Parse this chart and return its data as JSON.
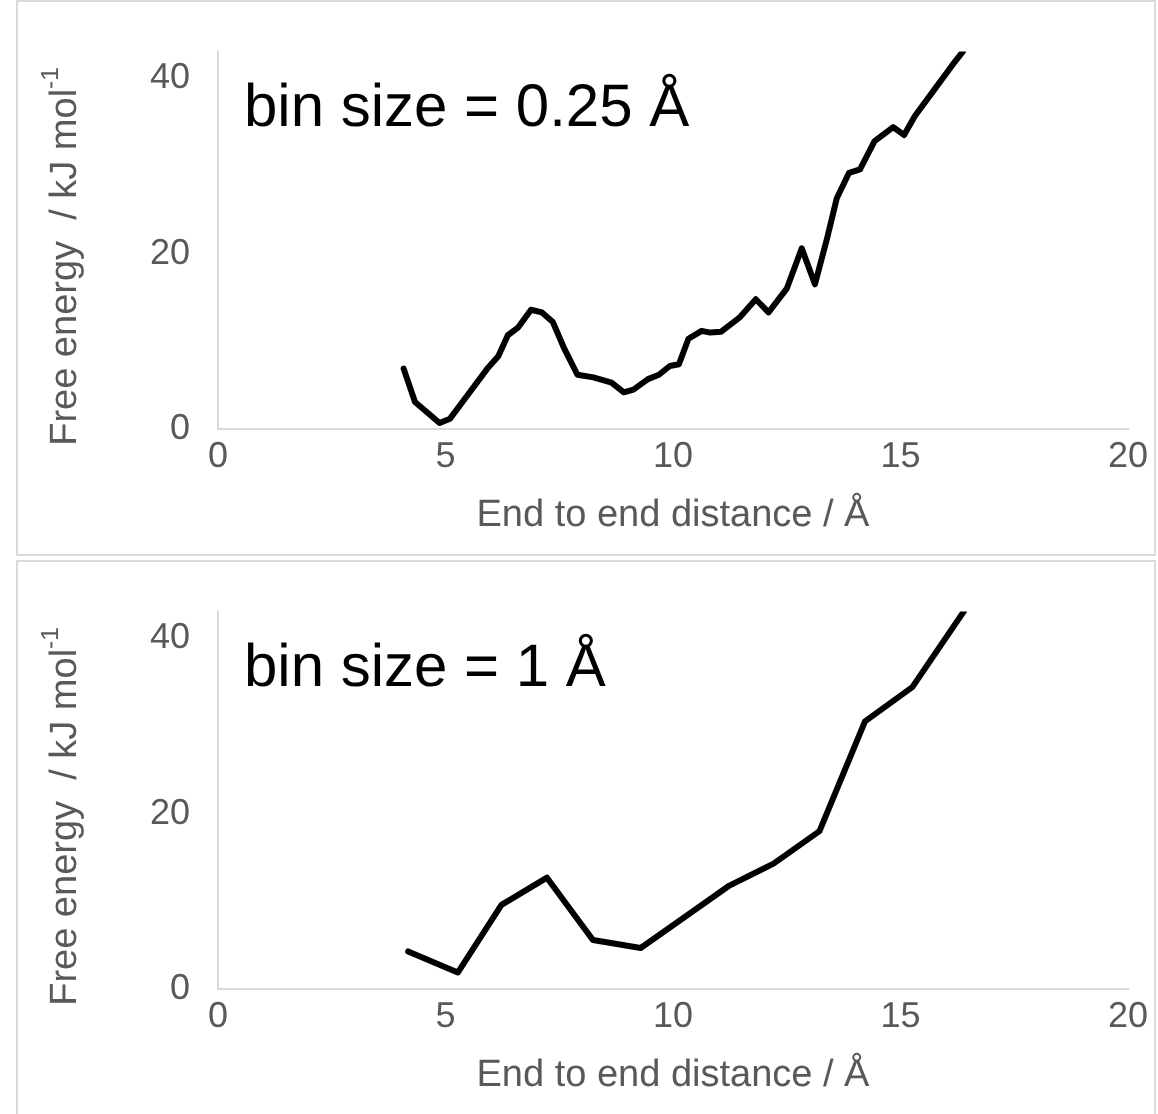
{
  "chart_data": [
    {
      "type": "line",
      "xlabel": "End to end distance / Å",
      "ylabel": "Free energy  / kJ mol$^{-1}$",
      "annotations": [
        "bin size = 0.25 Å"
      ],
      "x": [
        4.08,
        4.33,
        4.87,
        5.1,
        5.43,
        5.92,
        6.16,
        6.37,
        6.6,
        6.88,
        7.12,
        7.36,
        7.6,
        7.9,
        8.25,
        8.65,
        8.92,
        9.13,
        9.45,
        9.69,
        9.93,
        10.13,
        10.34,
        10.63,
        10.82,
        11.06,
        11.46,
        11.82,
        12.1,
        12.5,
        12.83,
        13.12,
        13.39,
        13.6,
        13.87,
        14.11,
        14.43,
        14.84,
        15.08,
        15.32,
        15.72,
        16.13,
        16.37
      ],
      "values": [
        6.9,
        3.1,
        0.7,
        1.2,
        3.5,
        6.9,
        8.3,
        10.7,
        11.6,
        13.6,
        13.3,
        12.2,
        9.3,
        6.2,
        5.9,
        5.3,
        4.2,
        4.5,
        5.7,
        6.2,
        7.2,
        7.4,
        10.3,
        11.2,
        11.0,
        11.1,
        12.7,
        14.8,
        13.3,
        16.0,
        20.6,
        16.5,
        21.8,
        26.3,
        29.2,
        29.6,
        32.8,
        34.4,
        33.5,
        35.7,
        38.5,
        41.4,
        43
      ],
      "color": "#000000",
      "marker": "none",
      "xlim": [
        0,
        20
      ],
      "ylim": [
        0,
        43
      ],
      "xticks": [
        0,
        5,
        10,
        15,
        20
      ],
      "yticks": [
        0,
        20,
        40
      ]
    },
    {
      "type": "line",
      "xlabel": "End to end distance / Å",
      "ylabel": "Free energy  / kJ mol$^{-1}$",
      "annotations": [
        "bin size = 1 Å"
      ],
      "x": [
        4.18,
        5.27,
        6.23,
        7.23,
        8.24,
        9.29,
        10.36,
        11.24,
        12.21,
        13.22,
        14.22,
        15.26,
        16.39
      ],
      "values": [
        4.3,
        1.9,
        9.6,
        12.7,
        5.6,
        4.7,
        8.6,
        11.8,
        14.3,
        18.0,
        30.5,
        34.4,
        43
      ],
      "color": "#000000",
      "marker": "none",
      "xlim": [
        0,
        20
      ],
      "ylim": [
        0,
        43
      ],
      "xticks": [
        0,
        5,
        10,
        15,
        20
      ],
      "yticks": [
        0,
        20,
        40
      ]
    }
  ]
}
